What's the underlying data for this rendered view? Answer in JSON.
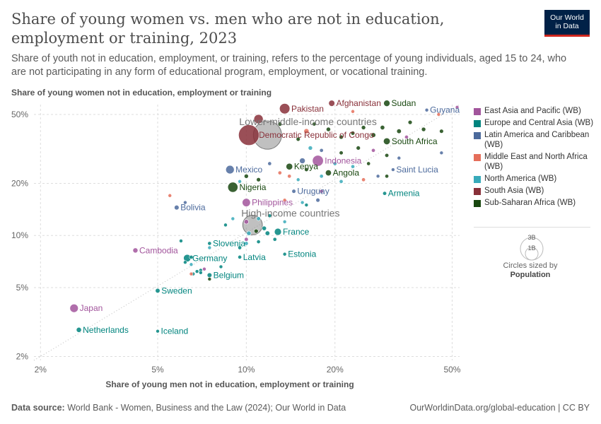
{
  "title": "Share of young women vs. men who are not in education, employment or training, 2023",
  "subtitle": "Share of youth not in education, employment, or training, refers to the percentage of young individuals, aged 15 to 24, who are not participating in any form of educational program, employment, or vocational training.",
  "logo": {
    "line1": "Our World",
    "line2": "in Data"
  },
  "footer": {
    "source_label": "Data source:",
    "source_text": "World Bank - Women, Business and the Law (2024); Our World in Data",
    "url": "OurWorldinData.org/global-education | CC BY"
  },
  "size_legend": {
    "big": "3B",
    "small": "1B",
    "caption": "Circles sized by",
    "caption_bold": "Population"
  },
  "colors": {
    "East Asia and Pacific (WB)": "#a2559c",
    "Europe and Central Asia (WB)": "#00847e",
    "Latin America and Caribbean (WB)": "#4c6a9c",
    "Middle East and North Africa (WB)": "#e56e5a",
    "North America (WB)": "#38aaba",
    "South Asia (WB)": "#883039",
    "Sub-Saharan Africa (WB)": "#18470f",
    "Income group": "#8c8c8c"
  },
  "chart_data": {
    "type": "scatter",
    "x_scale": "log",
    "y_scale": "log",
    "xlabel": "Share of young men not in education, employment or training",
    "ylabel": "Share of young women not in education, employment or training",
    "xlim": [
      1.9,
      53
    ],
    "ylim": [
      1.9,
      57
    ],
    "x_ticks": [
      {
        "value": 2,
        "label": "2%"
      },
      {
        "value": 5,
        "label": "5%"
      },
      {
        "value": 10,
        "label": "10%"
      },
      {
        "value": 20,
        "label": "20%"
      },
      {
        "value": 50,
        "label": "50%"
      }
    ],
    "y_ticks": [
      {
        "value": 2,
        "label": "2%"
      },
      {
        "value": 5,
        "label": "5%"
      },
      {
        "value": 10,
        "label": "10%"
      },
      {
        "value": 20,
        "label": "20%"
      },
      {
        "value": 50,
        "label": "50%"
      }
    ],
    "grid": true,
    "legend_position": "right",
    "legend": [
      "East Asia and Pacific (WB)",
      "Europe and Central Asia (WB)",
      "Latin America and Caribbean (WB)",
      "Middle East and North Africa (WB)",
      "North America (WB)",
      "South Asia (WB)",
      "Sub-Saharan Africa (WB)"
    ],
    "points": [
      {
        "label": "Pakistan",
        "x": 13.5,
        "y": 54,
        "region": "South Asia (WB)",
        "pop": 240
      },
      {
        "label": "Afghanistan",
        "x": 19.5,
        "y": 58,
        "region": "South Asia (WB)",
        "pop": 42
      },
      {
        "label": "Sudan",
        "x": 30,
        "y": 58,
        "region": "Sub-Saharan Africa (WB)",
        "pop": 48
      },
      {
        "label": "Guyana",
        "x": 41,
        "y": 53,
        "region": "Latin America and Caribbean (WB)",
        "pop": 1
      },
      {
        "label": "Lower-middle-income countries",
        "x": 11.8,
        "y": 38,
        "region": "Income group",
        "pop": 3000
      },
      {
        "label": "Democratic Republic of Congo",
        "x": 10.2,
        "y": 38,
        "region": "South Asia (WB)",
        "pop": 1400
      },
      {
        "label": "South Africa",
        "x": 30,
        "y": 35,
        "region": "Sub-Saharan Africa (WB)",
        "pop": 60
      },
      {
        "label": "Indonesia",
        "x": 17.5,
        "y": 27,
        "region": "East Asia and Pacific (WB)",
        "pop": 277
      },
      {
        "label": "Kenya",
        "x": 14.0,
        "y": 25,
        "region": "Sub-Saharan Africa (WB)",
        "pop": 55
      },
      {
        "label": "Mexico",
        "x": 8.8,
        "y": 24,
        "region": "Latin America and Caribbean (WB)",
        "pop": 128
      },
      {
        "label": "Angola",
        "x": 19.0,
        "y": 23,
        "region": "Sub-Saharan Africa (WB)",
        "pop": 36
      },
      {
        "label": "Saint Lucia",
        "x": 31.5,
        "y": 24,
        "region": "Latin America and Caribbean (WB)",
        "pop": 0.2
      },
      {
        "label": "Nigeria",
        "x": 9.0,
        "y": 19,
        "region": "Sub-Saharan Africa (WB)",
        "pop": 223
      },
      {
        "label": "Uruguay",
        "x": 14.5,
        "y": 18,
        "region": "Latin America and Caribbean (WB)",
        "pop": 3.4
      },
      {
        "label": "Armenia",
        "x": 29.5,
        "y": 17.5,
        "region": "Europe and Central Asia (WB)",
        "pop": 2.8
      },
      {
        "label": "Bolivia",
        "x": 5.8,
        "y": 14.5,
        "region": "Latin America and Caribbean (WB)",
        "pop": 12
      },
      {
        "label": "Philippines",
        "x": 10.0,
        "y": 15.5,
        "region": "East Asia and Pacific (WB)",
        "pop": 117
      },
      {
        "label": "High-income countries",
        "x": 10.5,
        "y": 11.5,
        "region": "Income group",
        "pop": 1250
      },
      {
        "label": "France",
        "x": 12.8,
        "y": 10.5,
        "region": "Europe and Central Asia (WB)",
        "pop": 68
      },
      {
        "label": "Slovenia",
        "x": 7.5,
        "y": 9.0,
        "region": "Europe and Central Asia (WB)",
        "pop": 2.1
      },
      {
        "label": "Cambodia",
        "x": 4.2,
        "y": 8.2,
        "region": "East Asia and Pacific (WB)",
        "pop": 17
      },
      {
        "label": "Estonia",
        "x": 13.5,
        "y": 7.8,
        "region": "Europe and Central Asia (WB)",
        "pop": 1.3
      },
      {
        "label": "Latvia",
        "x": 9.5,
        "y": 7.5,
        "region": "Europe and Central Asia (WB)",
        "pop": 1.9
      },
      {
        "label": "Germany",
        "x": 6.3,
        "y": 7.4,
        "region": "Europe and Central Asia (WB)",
        "pop": 84
      },
      {
        "label": "Belgium",
        "x": 7.5,
        "y": 5.9,
        "region": "Europe and Central Asia (WB)",
        "pop": 11.7
      },
      {
        "label": "Sweden",
        "x": 5.0,
        "y": 4.8,
        "region": "Europe and Central Asia (WB)",
        "pop": 10.5
      },
      {
        "label": "Japan",
        "x": 2.6,
        "y": 3.8,
        "region": "East Asia and Pacific (WB)",
        "pop": 125
      },
      {
        "label": "Netherlands",
        "x": 2.7,
        "y": 2.85,
        "region": "Europe and Central Asia (WB)",
        "pop": 17.9
      },
      {
        "label": "Iceland",
        "x": 5.0,
        "y": 2.8,
        "region": "Europe and Central Asia (WB)",
        "pop": 0.4
      },
      {
        "label": "",
        "x": 23,
        "y": 52,
        "region": "Middle East and North Africa (WB)",
        "pop": 1
      },
      {
        "label": "",
        "x": 52,
        "y": 55,
        "region": "East Asia and Pacific (WB)",
        "pop": 1
      },
      {
        "label": "",
        "x": 45,
        "y": 50,
        "region": "Middle East and North Africa (WB)",
        "pop": 1
      },
      {
        "label": "",
        "x": 46,
        "y": 30,
        "region": "Latin America and Caribbean (WB)",
        "pop": 1
      },
      {
        "label": "",
        "x": 36,
        "y": 45,
        "region": "Sub-Saharan Africa (WB)",
        "pop": 5
      },
      {
        "label": "",
        "x": 33,
        "y": 40,
        "region": "Sub-Saharan Africa (WB)",
        "pop": 10
      },
      {
        "label": "",
        "x": 40,
        "y": 41,
        "region": "Sub-Saharan Africa (WB)",
        "pop": 6
      },
      {
        "label": "",
        "x": 46,
        "y": 40,
        "region": "Sub-Saharan Africa (WB)",
        "pop": 4
      },
      {
        "label": "",
        "x": 35,
        "y": 37,
        "region": "East Asia and Pacific (WB)",
        "pop": 2
      },
      {
        "label": "",
        "x": 29,
        "y": 42,
        "region": "Sub-Saharan Africa (WB)",
        "pop": 8
      },
      {
        "label": "",
        "x": 27,
        "y": 38,
        "region": "Sub-Saharan Africa (WB)",
        "pop": 12
      },
      {
        "label": "",
        "x": 25,
        "y": 42,
        "region": "Sub-Saharan Africa (WB)",
        "pop": 6
      },
      {
        "label": "",
        "x": 23,
        "y": 39,
        "region": "Sub-Saharan Africa (WB)",
        "pop": 4
      },
      {
        "label": "",
        "x": 21,
        "y": 37,
        "region": "Sub-Saharan Africa (WB)",
        "pop": 5
      },
      {
        "label": "",
        "x": 19,
        "y": 41,
        "region": "Sub-Saharan Africa (WB)",
        "pop": 7
      },
      {
        "label": "",
        "x": 17,
        "y": 44,
        "region": "Sub-Saharan Africa (WB)",
        "pop": 3
      },
      {
        "label": "",
        "x": 16,
        "y": 40,
        "region": "Middle East and North Africa (WB)",
        "pop": 18
      },
      {
        "label": "",
        "x": 15,
        "y": 36,
        "region": "Sub-Saharan Africa (WB)",
        "pop": 4
      },
      {
        "label": "",
        "x": 13,
        "y": 44,
        "region": "Sub-Saharan Africa (WB)",
        "pop": 6
      },
      {
        "label": "",
        "x": 11,
        "y": 47,
        "region": "South Asia (WB)",
        "pop": 170
      },
      {
        "label": "",
        "x": 16.5,
        "y": 32,
        "region": "North America (WB)",
        "pop": 6
      },
      {
        "label": "",
        "x": 18,
        "y": 31,
        "region": "Latin America and Caribbean (WB)",
        "pop": 2
      },
      {
        "label": "",
        "x": 21,
        "y": 30,
        "region": "Sub-Saharan Africa (WB)",
        "pop": 3
      },
      {
        "label": "",
        "x": 24,
        "y": 32,
        "region": "Sub-Saharan Africa (WB)",
        "pop": 5
      },
      {
        "label": "",
        "x": 27,
        "y": 31,
        "region": "East Asia and Pacific (WB)",
        "pop": 2
      },
      {
        "label": "",
        "x": 30,
        "y": 29,
        "region": "Sub-Saharan Africa (WB)",
        "pop": 3
      },
      {
        "label": "",
        "x": 33,
        "y": 28,
        "region": "Latin America and Caribbean (WB)",
        "pop": 1
      },
      {
        "label": "",
        "x": 15.5,
        "y": 27,
        "region": "Latin America and Caribbean (WB)",
        "pop": 30
      },
      {
        "label": "",
        "x": 20,
        "y": 26,
        "region": "North America (WB)",
        "pop": 2
      },
      {
        "label": "",
        "x": 23,
        "y": 25,
        "region": "North America (WB)",
        "pop": 2
      },
      {
        "label": "",
        "x": 26,
        "y": 26,
        "region": "Sub-Saharan Africa (WB)",
        "pop": 2
      },
      {
        "label": "",
        "x": 12,
        "y": 26,
        "region": "Latin America and Caribbean (WB)",
        "pop": 2
      },
      {
        "label": "",
        "x": 13,
        "y": 23,
        "region": "Middle East and North Africa (WB)",
        "pop": 2
      },
      {
        "label": "",
        "x": 14,
        "y": 22,
        "region": "Middle East and North Africa (WB)",
        "pop": 2
      },
      {
        "label": "",
        "x": 16,
        "y": 24,
        "region": "Sub-Saharan Africa (WB)",
        "pop": 3
      },
      {
        "label": "",
        "x": 18,
        "y": 22,
        "region": "North America (WB)",
        "pop": 2
      },
      {
        "label": "",
        "x": 21,
        "y": 20.5,
        "region": "North America (WB)",
        "pop": 2
      },
      {
        "label": "",
        "x": 25,
        "y": 21,
        "region": "Middle East and North Africa (WB)",
        "pop": 2
      },
      {
        "label": "",
        "x": 28,
        "y": 22,
        "region": "Latin America and Caribbean (WB)",
        "pop": 1
      },
      {
        "label": "",
        "x": 30,
        "y": 22,
        "region": "Sub-Saharan Africa (WB)",
        "pop": 2
      },
      {
        "label": "",
        "x": 11,
        "y": 21,
        "region": "Sub-Saharan Africa (WB)",
        "pop": 5
      },
      {
        "label": "",
        "x": 15,
        "y": 21,
        "region": "North America (WB)",
        "pop": 1
      },
      {
        "label": "",
        "x": 10,
        "y": 22,
        "region": "Sub-Saharan Africa (WB)",
        "pop": 6
      },
      {
        "label": "",
        "x": 9.5,
        "y": 20.5,
        "region": "North America (WB)",
        "pop": 1
      },
      {
        "label": "",
        "x": 17.5,
        "y": 16,
        "region": "Latin America and Caribbean (WB)",
        "pop": 4
      },
      {
        "label": "",
        "x": 15.5,
        "y": 15.5,
        "region": "North America (WB)",
        "pop": 1
      },
      {
        "label": "",
        "x": 13.5,
        "y": 16,
        "region": "Middle East and North Africa (WB)",
        "pop": 1
      },
      {
        "label": "",
        "x": 16,
        "y": 15,
        "region": "Europe and Central Asia (WB)",
        "pop": 1
      },
      {
        "label": "",
        "x": 18,
        "y": 18,
        "region": "East Asia and Pacific (WB)",
        "pop": 2
      },
      {
        "label": "",
        "x": 5.5,
        "y": 17,
        "region": "Middle East and North Africa (WB)",
        "pop": 1
      },
      {
        "label": "",
        "x": 6.2,
        "y": 15.5,
        "region": "Latin America and Caribbean (WB)",
        "pop": 1
      },
      {
        "label": "",
        "x": 12,
        "y": 13,
        "region": "Europe and Central Asia (WB)",
        "pop": 2
      },
      {
        "label": "",
        "x": 11,
        "y": 12.5,
        "region": "North America (WB)",
        "pop": 3
      },
      {
        "label": "",
        "x": 13.5,
        "y": 12,
        "region": "North America (WB)",
        "pop": 1
      },
      {
        "label": "",
        "x": 10,
        "y": 12,
        "region": "East Asia and Pacific (WB)",
        "pop": 10
      },
      {
        "label": "",
        "x": 9,
        "y": 12.5,
        "region": "North America (WB)",
        "pop": 1
      },
      {
        "label": "",
        "x": 8.5,
        "y": 11.5,
        "region": "Europe and Central Asia (WB)",
        "pop": 1
      },
      {
        "label": "",
        "x": 11.5,
        "y": 11,
        "region": "Europe and Central Asia (WB)",
        "pop": 8
      },
      {
        "label": "",
        "x": 11.8,
        "y": 10.3,
        "region": "Europe and Central Asia (WB)",
        "pop": 10
      },
      {
        "label": "",
        "x": 10.8,
        "y": 10.6,
        "region": "Sub-Saharan Africa (WB)",
        "pop": 6
      },
      {
        "label": "",
        "x": 10.2,
        "y": 10.3,
        "region": "North America (WB)",
        "pop": 8
      },
      {
        "label": "",
        "x": 12.5,
        "y": 9.5,
        "region": "Europe and Central Asia (WB)",
        "pop": 2
      },
      {
        "label": "",
        "x": 10,
        "y": 9.5,
        "region": "East Asia and Pacific (WB)",
        "pop": 3
      },
      {
        "label": "",
        "x": 10,
        "y": 9.0,
        "region": "North America (WB)",
        "pop": 3
      },
      {
        "label": "",
        "x": 11,
        "y": 9.2,
        "region": "Europe and Central Asia (WB)",
        "pop": 2
      },
      {
        "label": "",
        "x": 9.5,
        "y": 8.5,
        "region": "Europe and Central Asia (WB)",
        "pop": 2
      },
      {
        "label": "",
        "x": 6.0,
        "y": 9.3,
        "region": "Europe and Central Asia (WB)",
        "pop": 1
      },
      {
        "label": "",
        "x": 7.5,
        "y": 8.5,
        "region": "North America (WB)",
        "pop": 1
      },
      {
        "label": "",
        "x": 6.5,
        "y": 7.5,
        "region": "Europe and Central Asia (WB)",
        "pop": 2
      },
      {
        "label": "",
        "x": 6.5,
        "y": 6.8,
        "region": "North America (WB)",
        "pop": 1
      },
      {
        "label": "",
        "x": 6.2,
        "y": 7.0,
        "region": "Europe and Central Asia (WB)",
        "pop": 1
      },
      {
        "label": "",
        "x": 6.8,
        "y": 6.2,
        "region": "Europe and Central Asia (WB)",
        "pop": 1
      },
      {
        "label": "",
        "x": 7.0,
        "y": 6.3,
        "region": "Europe and Central Asia (WB)",
        "pop": 1
      },
      {
        "label": "",
        "x": 6.6,
        "y": 6.0,
        "region": "Europe and Central Asia (WB)",
        "pop": 1
      },
      {
        "label": "",
        "x": 6.5,
        "y": 6.0,
        "region": "Middle East and North Africa (WB)",
        "pop": 1
      },
      {
        "label": "",
        "x": 7.2,
        "y": 6.4,
        "region": "East Asia and Pacific (WB)",
        "pop": 1
      },
      {
        "label": "",
        "x": 8.2,
        "y": 6.6,
        "region": "Europe and Central Asia (WB)",
        "pop": 1
      },
      {
        "label": "",
        "x": 7.5,
        "y": 5.6,
        "region": "Sub-Saharan Africa (WB)",
        "pop": 1
      },
      {
        "label": "",
        "x": 7.0,
        "y": 6.1,
        "region": "Europe and Central Asia (WB)",
        "pop": 1
      }
    ],
    "trend_line": {
      "style": "dotted",
      "from": [
        1.9,
        1.9
      ],
      "to": [
        53,
        57
      ]
    }
  }
}
